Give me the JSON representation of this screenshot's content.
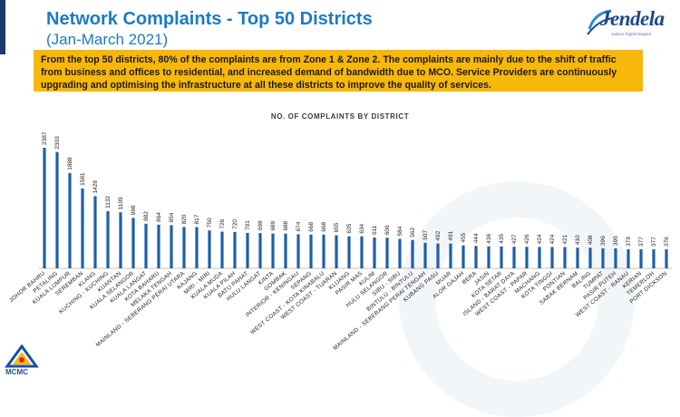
{
  "header": {
    "title": "Network Complaints - Top 50 Districts",
    "subtitle": "(Jan-March 2021)",
    "brand": "Jendela",
    "brand_tagline": "Jalinan Digital Negara"
  },
  "banner": {
    "text": "From the top 50 districts, 80% of the complaints are from Zone 1 & Zone 2. The complaints are mainly due to the shift of traffic from business and offices to residential, and increased demand of bandwidth due to MCO. Service Providers are continuously upgrading and optimising the infrastructure at all these districts to improve the quality of services."
  },
  "footer": {
    "logo_text": "MCMC"
  },
  "colors": {
    "bar": "#1f5fa8",
    "title": "#1d7ac4",
    "banner": "#f7b70b"
  },
  "chart_data": {
    "type": "bar",
    "title": "NO. OF COMPLAINTS BY DISTRICT",
    "xlabel": "",
    "ylabel": "",
    "categories": [
      "JOHOR BAHRU",
      "PETALING",
      "KUALA LUMPUR",
      "SEREMBAN",
      "KLANG",
      "KUCHING - KUCHING",
      "KUANTAN",
      "KUALA SELANGOR",
      "KUALA LANGAT",
      "KOTA BAHARU",
      "MELAKA TENGAH",
      "MAINLAND - SEBERANG PERAI UTARA",
      "KAJANG",
      "MIRI - MIRI",
      "KUALA MUDA",
      "KUALA PILAH",
      "BATU PAHAT",
      "HULU LANGAT",
      "KINTA",
      "GOMBAK",
      "INTERIOR - KENINGAU",
      "SEPANG",
      "WEST COAST - KOTA KINABALU",
      "WEST COAST - TUARAN",
      "KLUANG",
      "PASIR MAS",
      "KULIM",
      "HULU SELANGOR",
      "SIBU - SIBU",
      "BINTULU - BINTULU",
      "MAINLAND - SEBERANG PERAI TENGAH",
      "KUBANG PASU",
      "MUAR",
      "ALOR GAJAH",
      "BERA",
      "JASIN",
      "KOTA SETAR",
      "ISLAND - BARAT DAYA",
      "WEST COAST - PAPAR",
      "MACHANG",
      "KOTA TINGGI",
      "PONTIAN",
      "SABAK BERNAM",
      "BALING",
      "TUMPAT",
      "PASIR PUTEH",
      "WEST COAST - RANAU",
      "KERIAN",
      "TEMERLOH",
      "PORT DICKSON"
    ],
    "values": [
      2387,
      2303,
      1888,
      1581,
      1428,
      1132,
      1109,
      998,
      882,
      864,
      854,
      820,
      817,
      750,
      726,
      720,
      701,
      698,
      689,
      688,
      674,
      668,
      668,
      655,
      635,
      634,
      611,
      606,
      584,
      562,
      507,
      492,
      491,
      455,
      444,
      436,
      435,
      427,
      426,
      424,
      424,
      421,
      410,
      408,
      396,
      395,
      379,
      377,
      377,
      376
    ],
    "ylim": [
      0,
      2387
    ],
    "grid": false,
    "legend": "none",
    "data_labels": true
  }
}
